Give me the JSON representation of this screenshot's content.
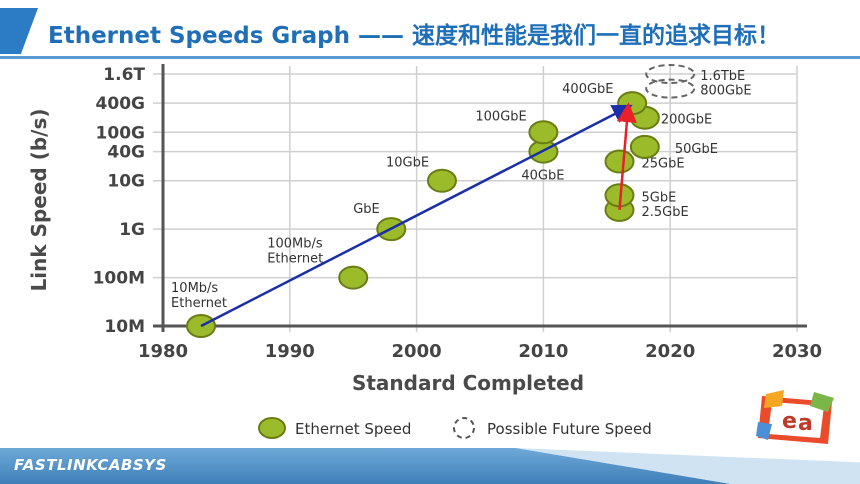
{
  "title": "Ethernet Speeds Graph —— 速度和性能是我们一直的追求目标！",
  "footer_brand": "FASTLINKCABSYS",
  "chart_data": {
    "type": "scatter",
    "xlabel": "Standard Completed",
    "ylabel": "Link Speed (b/s)",
    "x_ticks": [
      1980,
      1990,
      2000,
      2010,
      2020,
      2030
    ],
    "y_ticks": [
      "10M",
      "100M",
      "1G",
      "10G",
      "40G",
      "100G",
      "400G",
      "1.6T"
    ],
    "xlim": [
      1980,
      2030
    ],
    "y_scale": "log",
    "grid": true,
    "legend_position": "bottom",
    "series": [
      {
        "name": "Ethernet Speed",
        "color": "#9bbb2a",
        "points": [
          {
            "label": "10Mb/s Ethernet",
            "x": 1983,
            "y": "10M"
          },
          {
            "label": "100Mb/s Ethernet",
            "x": 1995,
            "y": "100M"
          },
          {
            "label": "GbE",
            "x": 1998,
            "y": "1G"
          },
          {
            "label": "10GbE",
            "x": 2002,
            "y": "10G"
          },
          {
            "label": "40GbE",
            "x": 2010,
            "y": "40G"
          },
          {
            "label": "100GbE",
            "x": 2010,
            "y": "100G"
          },
          {
            "label": "2.5GbE",
            "x": 2016,
            "y": "2.5G"
          },
          {
            "label": "5GbE",
            "x": 2016,
            "y": "5G"
          },
          {
            "label": "25GbE",
            "x": 2016,
            "y": "25G"
          },
          {
            "label": "50GbE",
            "x": 2018,
            "y": "50G"
          },
          {
            "label": "200GbE",
            "x": 2018,
            "y": "200G"
          },
          {
            "label": "400GbE",
            "x": 2017,
            "y": "400G"
          }
        ]
      },
      {
        "name": "Possible Future Speed",
        "style": "dashed",
        "points": [
          {
            "label": "800GbE",
            "x": 2020,
            "y": "800G"
          },
          {
            "label": "1.6TbE",
            "x": 2020,
            "y": "1.6T"
          }
        ]
      }
    ],
    "trend_lines": [
      {
        "color": "#1a2fa8",
        "from": {
          "x": 1983,
          "y": "10M"
        },
        "to": {
          "x": 2017,
          "y": "400G"
        }
      },
      {
        "color": "#e8202a",
        "from": {
          "x": 2016,
          "y": "2.5G"
        },
        "to": {
          "x": 2017,
          "y": "400G"
        }
      }
    ]
  }
}
